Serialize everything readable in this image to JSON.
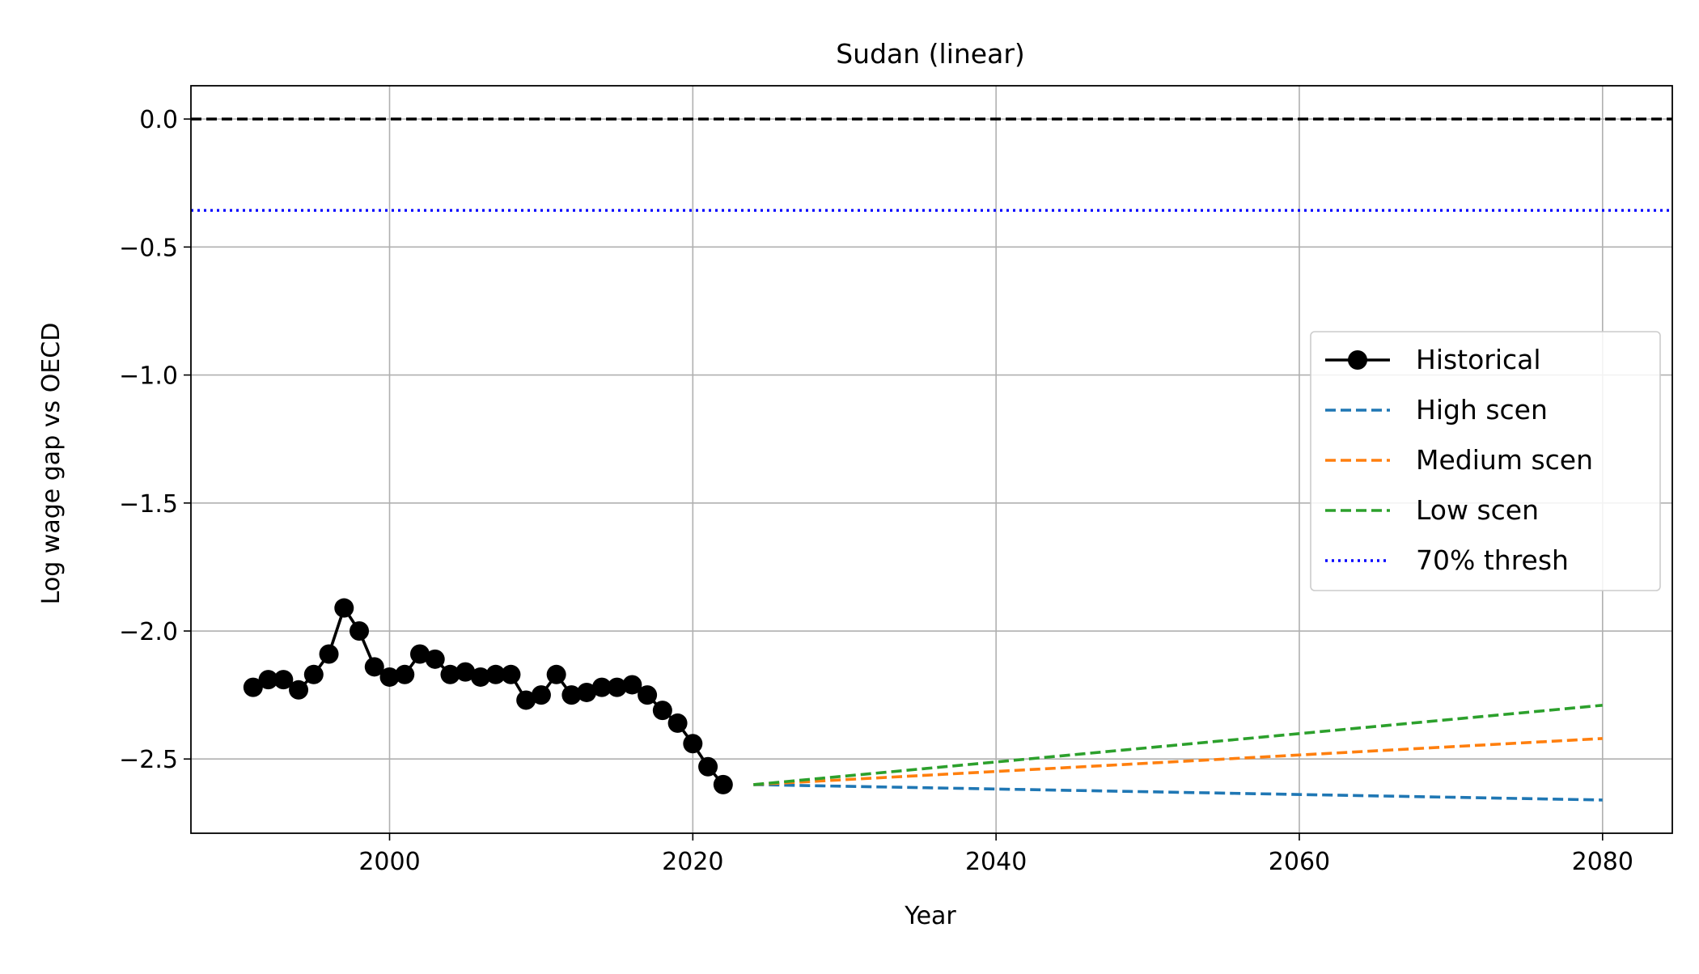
{
  "chart_data": {
    "type": "line",
    "title": "Sudan (linear)",
    "xlabel": "Year",
    "ylabel": "Log wage gap vs OECD",
    "xlim": [
      1986.9,
      2084.6
    ],
    "ylim": [
      -2.79,
      0.13
    ],
    "xticks": [
      2000,
      2020,
      2040,
      2060,
      2080
    ],
    "yticks": [
      0.0,
      -0.5,
      -1.0,
      -1.5,
      -2.0,
      -2.5
    ],
    "ytick_labels": [
      "0.0",
      "−0.5",
      "−1.0",
      "−1.5",
      "−2.0",
      "−2.5"
    ],
    "grid": true,
    "legend_position": "center-right",
    "reference_lines": [
      {
        "y": 0.0,
        "color": "#000000",
        "style": "dashed"
      },
      {
        "y": -0.357,
        "color": "#0000ff",
        "style": "dotted",
        "name": "70% thresh"
      }
    ],
    "series": [
      {
        "name": "Historical",
        "color": "#000000",
        "style": "solid-markers",
        "x": [
          1991,
          1992,
          1993,
          1994,
          1995,
          1996,
          1997,
          1998,
          1999,
          2000,
          2001,
          2002,
          2003,
          2004,
          2005,
          2006,
          2007,
          2008,
          2009,
          2010,
          2011,
          2012,
          2013,
          2014,
          2015,
          2016,
          2017,
          2018,
          2019,
          2020,
          2021,
          2022
        ],
        "y": [
          -2.22,
          -2.19,
          -2.19,
          -2.23,
          -2.17,
          -2.09,
          -1.91,
          -2.0,
          -2.14,
          -2.18,
          -2.17,
          -2.09,
          -2.11,
          -2.17,
          -2.16,
          -2.18,
          -2.17,
          -2.17,
          -2.27,
          -2.25,
          -2.17,
          -2.25,
          -2.24,
          -2.22,
          -2.22,
          -2.21,
          -2.25,
          -2.31,
          -2.36,
          -2.44,
          -2.53,
          -2.6
        ]
      },
      {
        "name": "High scen",
        "color": "#1f77b4",
        "style": "dashed",
        "x": [
          2024,
          2080
        ],
        "y": [
          -2.6,
          -2.66
        ]
      },
      {
        "name": "Medium scen",
        "color": "#ff7f0e",
        "style": "dashed",
        "x": [
          2024,
          2080
        ],
        "y": [
          -2.6,
          -2.42
        ]
      },
      {
        "name": "Low scen",
        "color": "#2ca02c",
        "style": "dashed",
        "x": [
          2024,
          2080
        ],
        "y": [
          -2.6,
          -2.29
        ]
      }
    ],
    "legend": [
      "Historical",
      "High scen",
      "Medium scen",
      "Low scen",
      "70% thresh"
    ]
  }
}
